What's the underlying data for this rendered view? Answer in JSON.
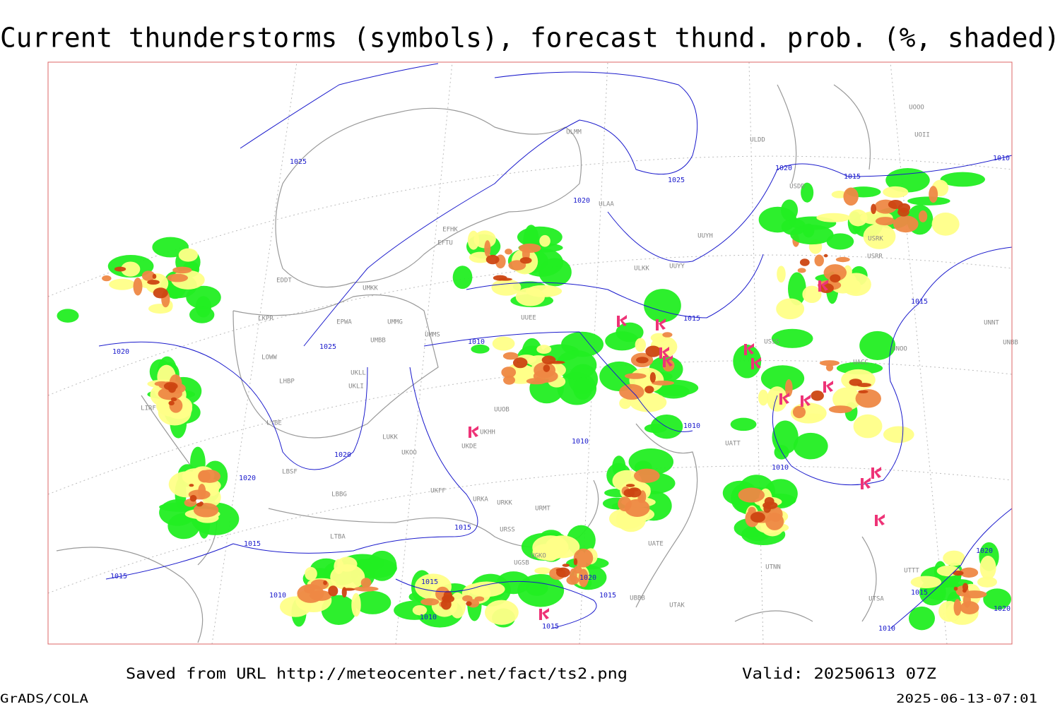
{
  "title": "Current thunderstorms (symbols), forecast thund. prob. (%, shaded)",
  "footer": {
    "source": "Saved from URL http://meteocenter.net/fact/ts2.png",
    "valid": "Valid: 20250613 07Z",
    "software": "GrADS/COLA",
    "timestamp": "2025-06-13-07:01"
  },
  "isobar_labels": [
    1025,
    1025,
    1020,
    1015,
    1010,
    1020,
    1015,
    1015,
    1025,
    1010,
    1020,
    1010,
    1010,
    1020,
    1020,
    1010,
    1015,
    1015,
    1015,
    1010,
    1015,
    1020,
    1015,
    1010,
    1015,
    1015,
    1010,
    1020,
    1020
  ],
  "stations": [
    "UOOO",
    "UOII",
    "ULDD",
    "ULMM",
    "USDD",
    "ULAA",
    "UUYH",
    "ULKK",
    "UUYY",
    "EFHK",
    "EFTU",
    "EDDT",
    "UMKK",
    "EPWA",
    "UMMG",
    "UMMS",
    "UMBB",
    "UUEE",
    "LKPR",
    "LOWW",
    "LHBP",
    "UKLL",
    "UKLI",
    "LYBE",
    "LIRF",
    "LUKK",
    "UKOO",
    "UKDE",
    "UKHH",
    "UUOB",
    "LBSF",
    "LBBG",
    "UKFF",
    "URKA",
    "URKK",
    "URMT",
    "URSS",
    "LTBA",
    "UGSB",
    "UGKO",
    "UBBB",
    "UATE",
    "UATT",
    "UTAK",
    "UTTT",
    "UTSA",
    "UTNN",
    "UACC",
    "UNOO",
    "UNNT",
    "UNBB",
    "USSS",
    "USRK",
    "USRR"
  ]
}
